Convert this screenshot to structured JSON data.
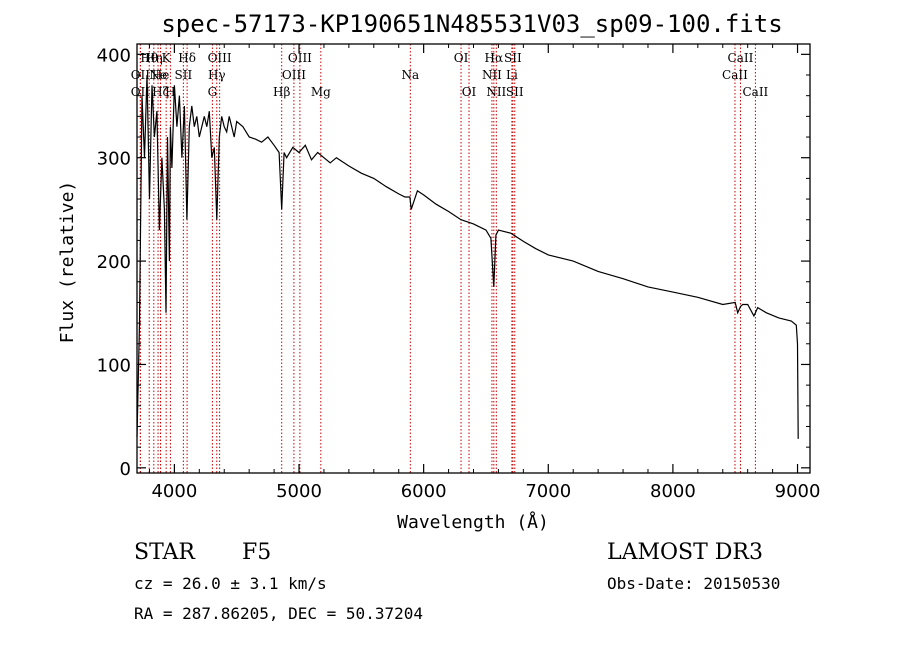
{
  "chart_data": {
    "type": "line",
    "title": "spec-57173-KP190651N485531V03_sp09-100.fits",
    "xlabel": "Wavelength (Å)",
    "ylabel": "Flux (relative)",
    "xlim": [
      3700,
      9100
    ],
    "ylim": [
      -5,
      410
    ],
    "xticks": [
      4000,
      5000,
      6000,
      7000,
      8000,
      9000
    ],
    "yticks": [
      0,
      100,
      200,
      300,
      400
    ],
    "line_color": "#000000",
    "marker_color": "#cc0000",
    "spectrum": {
      "wavelength": [
        3700,
        3720,
        3740,
        3760,
        3780,
        3800,
        3820,
        3840,
        3860,
        3880,
        3900,
        3920,
        3933,
        3945,
        3960,
        3968,
        3980,
        4000,
        4020,
        4040,
        4060,
        4080,
        4100,
        4120,
        4140,
        4160,
        4180,
        4200,
        4220,
        4240,
        4260,
        4280,
        4300,
        4320,
        4340,
        4360,
        4380,
        4400,
        4420,
        4440,
        4460,
        4480,
        4500,
        4550,
        4600,
        4650,
        4700,
        4750,
        4800,
        4840,
        4861,
        4880,
        4900,
        4950,
        5000,
        5050,
        5100,
        5150,
        5200,
        5250,
        5300,
        5400,
        5500,
        5600,
        5700,
        5800,
        5850,
        5890,
        5900,
        5950,
        6000,
        6100,
        6200,
        6300,
        6400,
        6500,
        6540,
        6563,
        6580,
        6600,
        6700,
        6800,
        6900,
        7000,
        7200,
        7400,
        7600,
        7800,
        8000,
        8200,
        8400,
        8500,
        8520,
        8542,
        8560,
        8600,
        8650,
        8662,
        8680,
        8750,
        8850,
        8950,
        8990,
        9000,
        9005
      ],
      "flux": [
        30,
        140,
        360,
        300,
        380,
        260,
        370,
        320,
        345,
        230,
        300,
        250,
        150,
        320,
        200,
        330,
        290,
        370,
        330,
        360,
        300,
        350,
        240,
        330,
        350,
        330,
        340,
        320,
        330,
        340,
        330,
        345,
        300,
        310,
        240,
        320,
        340,
        330,
        325,
        340,
        330,
        320,
        335,
        330,
        320,
        318,
        315,
        320,
        312,
        305,
        250,
        305,
        300,
        310,
        305,
        312,
        298,
        305,
        300,
        295,
        300,
        292,
        285,
        280,
        272,
        265,
        262,
        262,
        250,
        268,
        264,
        255,
        248,
        240,
        236,
        230,
        222,
        175,
        225,
        230,
        227,
        219,
        212,
        206,
        200,
        190,
        183,
        175,
        170,
        165,
        158,
        160,
        150,
        156,
        158,
        158,
        147,
        150,
        155,
        150,
        145,
        142,
        138,
        120,
        28
      ]
    },
    "lines": [
      {
        "name": "Hθ",
        "wl": 3798,
        "row": 0
      },
      {
        "name": "OII",
        "wl": 3727,
        "row": 1
      },
      {
        "name": "OII",
        "wl": 3727,
        "row": 2
      },
      {
        "name": "Hη",
        "wl": 3835,
        "row": 0
      },
      {
        "name": "Ne",
        "wl": 3869,
        "row": 1
      },
      {
        "name": "Hζ",
        "wl": 3889,
        "row": 2
      },
      {
        "name": "K",
        "wl": 3934,
        "row": 0
      },
      {
        "name": "He",
        "wl": 3889,
        "row": 1
      },
      {
        "name": "H",
        "wl": 3968,
        "row": 2
      },
      {
        "name": "SII",
        "wl": 4072,
        "row": 1
      },
      {
        "name": "Hδ",
        "wl": 4102,
        "row": 0
      },
      {
        "name": "OIII",
        "wl": 4363,
        "row": 0
      },
      {
        "name": "Hγ",
        "wl": 4340,
        "row": 1
      },
      {
        "name": "G",
        "wl": 4305,
        "row": 2
      },
      {
        "name": "Hβ",
        "wl": 4861,
        "row": 2
      },
      {
        "name": "OIII",
        "wl": 5007,
        "row": 0
      },
      {
        "name": "OIII",
        "wl": 4959,
        "row": 1
      },
      {
        "name": "Mg",
        "wl": 5175,
        "row": 2
      },
      {
        "name": "Na",
        "wl": 5893,
        "row": 1
      },
      {
        "name": "OI",
        "wl": 6300,
        "row": 0
      },
      {
        "name": "OI",
        "wl": 6364,
        "row": 2
      },
      {
        "name": "Hα",
        "wl": 6563,
        "row": 0
      },
      {
        "name": "SII",
        "wl": 6716,
        "row": 0
      },
      {
        "name": "NII",
        "wl": 6548,
        "row": 1
      },
      {
        "name": "Li",
        "wl": 6708,
        "row": 1
      },
      {
        "name": "NII",
        "wl": 6583,
        "row": 2
      },
      {
        "name": "SII",
        "wl": 6731,
        "row": 2
      },
      {
        "name": "CaII",
        "wl": 8542,
        "row": 0
      },
      {
        "name": "CaII",
        "wl": 8498,
        "row": 1
      },
      {
        "name": "CaII",
        "wl": 8662,
        "row": 2
      }
    ]
  },
  "info": {
    "object_class": "STAR",
    "subclass": "F5",
    "survey": "LAMOST DR3",
    "cz": "cz = 26.0 ± 3.1 km/s",
    "obs_date": "Obs-Date: 20150530",
    "coords": "RA = 287.86205, DEC =  50.37204"
  }
}
